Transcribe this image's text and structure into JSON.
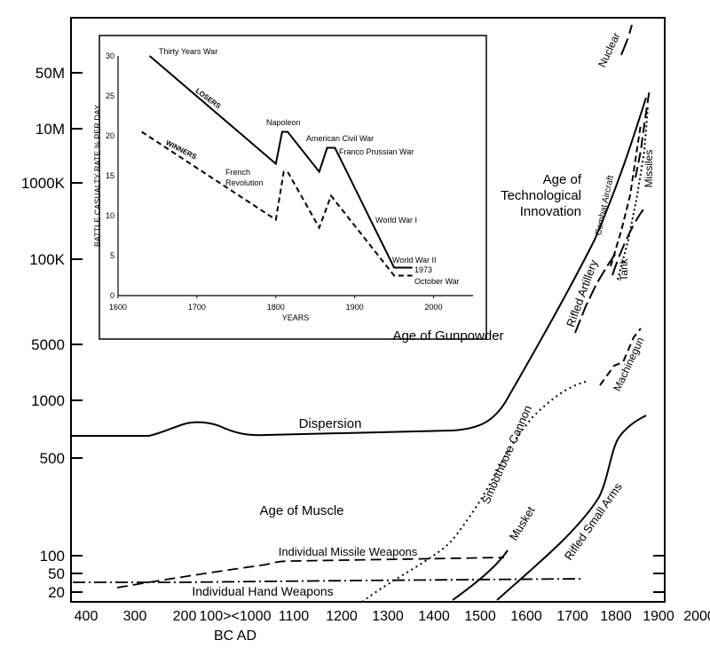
{
  "colors": {
    "ink": "#000000",
    "background": "#ffffff"
  },
  "chart_data": [
    {
      "type": "line",
      "title": "",
      "xlabel": "",
      "ylabel": "",
      "y_scale": "log",
      "y_ticks": [
        "50M",
        "10M",
        "1000K",
        "100K",
        "5000",
        "1000",
        "500",
        "100",
        "50",
        "20"
      ],
      "x_ticks": [
        "400",
        "300",
        "200",
        "100><1000",
        "1100",
        "1200",
        "1300",
        "1400",
        "1500",
        "1600",
        "1700",
        "1800",
        "1900",
        "2000"
      ],
      "x_subtitle": "BC AD",
      "eras": [
        "Age of Muscle",
        "Age of Gunpowder",
        "Age of Technological Innovation"
      ],
      "series": [
        {
          "name": "Dispersion",
          "style": "solid"
        },
        {
          "name": "Individual Missile Weapons",
          "style": "dashed"
        },
        {
          "name": "Individual Hand Weapons",
          "style": "dash-dot"
        },
        {
          "name": "Smoothbore Cannon",
          "style": "dotted"
        },
        {
          "name": "Musket",
          "style": "solid"
        },
        {
          "name": "Rifled Small Arms",
          "style": "solid"
        },
        {
          "name": "Machinegun",
          "style": "dashed"
        },
        {
          "name": "Rifled Artillery",
          "style": "long-dash"
        },
        {
          "name": "Tank",
          "style": "long-dash"
        },
        {
          "name": "Combat Aircraft",
          "style": "dashed"
        },
        {
          "name": "Missiles",
          "style": "dotted"
        },
        {
          "name": "Nuclear",
          "style": "long-dash"
        }
      ]
    },
    {
      "type": "line",
      "title": "",
      "xlabel": "YEARS",
      "ylabel": "BATTLE CASUALTY RATE % PER DAY",
      "xlim": [
        1600,
        2050
      ],
      "ylim": [
        0,
        30
      ],
      "x_ticks": [
        1600,
        1700,
        1800,
        1900,
        2000
      ],
      "y_ticks": [
        0,
        5,
        10,
        15,
        20,
        25,
        30
      ],
      "series": [
        {
          "name": "LOSERS",
          "style": "solid",
          "x": [
            1640,
            1800,
            1808,
            1815,
            1855,
            1865,
            1875,
            1950,
            1955,
            1973
          ],
          "y": [
            30,
            16.5,
            20.5,
            20.5,
            15.5,
            18.5,
            18.5,
            3.5,
            3.5,
            3.5
          ]
        },
        {
          "name": "WINNERS",
          "style": "dashed",
          "x": [
            1630,
            1800,
            1810,
            1815,
            1855,
            1870,
            1950,
            1973
          ],
          "y": [
            20.5,
            9.5,
            15.5,
            15.5,
            8.5,
            12.5,
            2.5,
            2.5
          ]
        }
      ],
      "annotations": [
        "Thirty Years War",
        "Napoleon",
        "American Civil War",
        "Franco Prussian War",
        "French Revolution",
        "World War I",
        "World War II",
        "1973 October War"
      ],
      "annotation_parts": {
        "french_revolution": [
          "French",
          "Revolution"
        ],
        "october_war": [
          "1973",
          "October War"
        ]
      }
    }
  ]
}
